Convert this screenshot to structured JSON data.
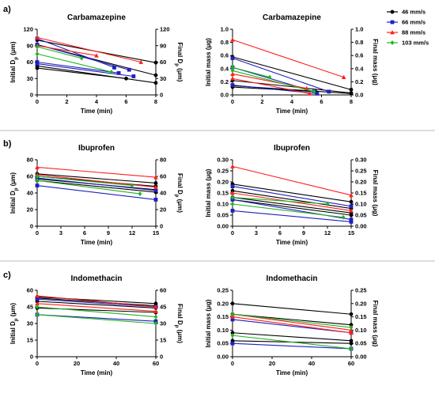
{
  "legend": {
    "items": [
      {
        "label": "46 mm/s",
        "color": "#000000",
        "marker": "circle"
      },
      {
        "label": "66 mm/s",
        "color": "#1f1fbf",
        "marker": "square"
      },
      {
        "label": "88 mm/s",
        "color": "#ff1f1f",
        "marker": "triangle"
      },
      {
        "label": "103 mm/s",
        "color": "#21b321",
        "marker": "diamond"
      }
    ]
  },
  "panel_labels": [
    "a)",
    "b)",
    "c)"
  ],
  "chart_data": [
    {
      "type": "line",
      "panel": "a",
      "title": "Carbamazepine",
      "xlabel": "Time (min)",
      "ylabel": "Initial D_p (μm)",
      "y2label": "Final D_p (μm)",
      "xlim": [
        0,
        8
      ],
      "ylim": [
        0,
        120
      ],
      "xticks": [
        0,
        2,
        4,
        6,
        8
      ],
      "yticks": [
        0,
        30,
        60,
        90,
        120
      ],
      "series": [
        {
          "color": "#000000",
          "points": [
            [
              0,
              100
            ],
            [
              8,
              59
            ]
          ]
        },
        {
          "color": "#000000",
          "points": [
            [
              0,
              92
            ],
            [
              8,
              36
            ]
          ]
        },
        {
          "color": "#000000",
          "points": [
            [
              0,
              53
            ],
            [
              8,
              22
            ]
          ]
        },
        {
          "color": "#000000",
          "points": [
            [
              0,
              49
            ],
            [
              6,
              30
            ]
          ]
        },
        {
          "color": "#1f1fbf",
          "points": [
            [
              0,
              103
            ],
            [
              5.2,
              50
            ]
          ]
        },
        {
          "color": "#1f1fbf",
          "points": [
            [
              0,
              92
            ],
            [
              6.2,
              46
            ]
          ]
        },
        {
          "color": "#1f1fbf",
          "points": [
            [
              0,
              60
            ],
            [
              5.5,
              40
            ]
          ]
        },
        {
          "color": "#1f1fbf",
          "points": [
            [
              0,
              57
            ],
            [
              6.5,
              34
            ]
          ]
        },
        {
          "color": "#ff1f1f",
          "points": [
            [
              0,
              105
            ],
            [
              7,
              60
            ]
          ]
        },
        {
          "color": "#ff1f1f",
          "points": [
            [
              0,
              90
            ],
            [
              4,
              72
            ]
          ]
        },
        {
          "color": "#21b321",
          "points": [
            [
              0,
              88
            ],
            [
              3,
              67
            ]
          ]
        },
        {
          "color": "#21b321",
          "points": [
            [
              0,
              75
            ],
            [
              5,
              42
            ]
          ]
        }
      ]
    },
    {
      "type": "line",
      "panel": "a",
      "title": "Carbamazepine",
      "xlabel": "Time (min)",
      "ylabel": "Initial mass (μg)",
      "y2label": "Final mass (μg)",
      "xlim": [
        0,
        8
      ],
      "ylim": [
        0,
        1.0
      ],
      "xticks": [
        0,
        2,
        4,
        6,
        8
      ],
      "yticks": [
        0.0,
        0.2,
        0.4,
        0.6,
        0.8,
        1.0
      ],
      "series": [
        {
          "color": "#000000",
          "points": [
            [
              0,
              0.58
            ],
            [
              8,
              0.08
            ]
          ]
        },
        {
          "color": "#000000",
          "points": [
            [
              0,
              0.22
            ],
            [
              8,
              0.03
            ]
          ]
        },
        {
          "color": "#000000",
          "points": [
            [
              0,
              0.14
            ],
            [
              8,
              0.02
            ]
          ]
        },
        {
          "color": "#000000",
          "points": [
            [
              0,
              0.12
            ],
            [
              5.6,
              0.05
            ]
          ]
        },
        {
          "color": "#1f1fbf",
          "points": [
            [
              0,
              0.56
            ],
            [
              6.5,
              0.05
            ]
          ]
        },
        {
          "color": "#1f1fbf",
          "points": [
            [
              0,
              0.42
            ],
            [
              5.5,
              0.05
            ]
          ]
        },
        {
          "color": "#1f1fbf",
          "points": [
            [
              0,
              0.15
            ],
            [
              5.7,
              0.02
            ]
          ]
        },
        {
          "color": "#ff1f1f",
          "points": [
            [
              0,
              0.84
            ],
            [
              7.5,
              0.27
            ]
          ]
        },
        {
          "color": "#ff1f1f",
          "points": [
            [
              0,
              0.32
            ],
            [
              5,
              0.1
            ]
          ]
        },
        {
          "color": "#ff1f1f",
          "points": [
            [
              0,
              0.25
            ],
            [
              5.2,
              0.02
            ]
          ]
        },
        {
          "color": "#21b321",
          "points": [
            [
              0,
              0.42
            ],
            [
              2.5,
              0.27
            ]
          ]
        },
        {
          "color": "#21b321",
          "points": [
            [
              0,
              0.37
            ],
            [
              5.5,
              0.05
            ]
          ]
        }
      ]
    },
    {
      "type": "line",
      "panel": "b",
      "title": "Ibuprofen",
      "xlabel": "Time (min)",
      "ylabel": "Initial D_p (μm)",
      "y2label": "Final D_p (μm)",
      "xlim": [
        0,
        15
      ],
      "ylim": [
        0,
        80
      ],
      "xticks": [
        0,
        3,
        6,
        9,
        12,
        15
      ],
      "yticks": [
        0,
        20,
        40,
        60,
        80
      ],
      "series": [
        {
          "color": "#000000",
          "points": [
            [
              0,
              63
            ],
            [
              15,
              52
            ]
          ]
        },
        {
          "color": "#000000",
          "points": [
            [
              0,
              60
            ],
            [
              15,
              48
            ]
          ]
        },
        {
          "color": "#000000",
          "points": [
            [
              0,
              57
            ],
            [
              15,
              44
            ]
          ]
        },
        {
          "color": "#000000",
          "points": [
            [
              0,
              55
            ],
            [
              15,
              41
            ]
          ]
        },
        {
          "color": "#1f1fbf",
          "points": [
            [
              0,
              49
            ],
            [
              15,
              32
            ]
          ]
        },
        {
          "color": "#1f1fbf",
          "points": [
            [
              0,
              58
            ],
            [
              15,
              43
            ]
          ]
        },
        {
          "color": "#ff1f1f",
          "points": [
            [
              0,
              71
            ],
            [
              15,
              59
            ]
          ]
        },
        {
          "color": "#ff1f1f",
          "points": [
            [
              0,
              62
            ],
            [
              15,
              47
            ]
          ]
        },
        {
          "color": "#21b321",
          "points": [
            [
              0,
              55
            ],
            [
              13,
              39
            ]
          ]
        },
        {
          "color": "#21b321",
          "points": [
            [
              0,
              60
            ],
            [
              12,
              49
            ]
          ]
        }
      ]
    },
    {
      "type": "line",
      "panel": "b",
      "title": "Ibuprofen",
      "xlabel": "Time (min)",
      "ylabel": "Initial mass (μg)",
      "y2label": "Final mass (μg)",
      "xlim": [
        0,
        15
      ],
      "ylim": [
        0,
        0.3
      ],
      "xticks": [
        0,
        3,
        6,
        9,
        12,
        15
      ],
      "yticks": [
        0.0,
        0.05,
        0.1,
        0.15,
        0.2,
        0.25,
        0.3
      ],
      "series": [
        {
          "color": "#000000",
          "points": [
            [
              0,
              0.19
            ],
            [
              15,
              0.11
            ]
          ]
        },
        {
          "color": "#000000",
          "points": [
            [
              0,
              0.16
            ],
            [
              15,
              0.08
            ]
          ]
        },
        {
          "color": "#000000",
          "points": [
            [
              0,
              0.13
            ],
            [
              15,
              0.06
            ]
          ]
        },
        {
          "color": "#000000",
          "points": [
            [
              0,
              0.12
            ],
            [
              15,
              0.05
            ]
          ]
        },
        {
          "color": "#1f1fbf",
          "points": [
            [
              0,
              0.18
            ],
            [
              15,
              0.09
            ]
          ]
        },
        {
          "color": "#1f1fbf",
          "points": [
            [
              0,
              0.07
            ],
            [
              15,
              0.02
            ]
          ]
        },
        {
          "color": "#1f1fbf",
          "points": [
            [
              0,
              0.12
            ],
            [
              15,
              0.03
            ]
          ]
        },
        {
          "color": "#ff1f1f",
          "points": [
            [
              0,
              0.27
            ],
            [
              15,
              0.14
            ]
          ]
        },
        {
          "color": "#ff1f1f",
          "points": [
            [
              0,
              0.15
            ],
            [
              15,
              0.07
            ]
          ]
        },
        {
          "color": "#21b321",
          "points": [
            [
              0,
              0.13
            ],
            [
              12,
              0.1
            ]
          ]
        },
        {
          "color": "#21b321",
          "points": [
            [
              0,
              0.1
            ],
            [
              14,
              0.04
            ]
          ]
        }
      ]
    },
    {
      "type": "line",
      "panel": "c",
      "title": "Indomethacin",
      "xlabel": "Time (min)",
      "ylabel": "Initial D_p (μm)",
      "y2label": "Final D_p (μm)",
      "xlim": [
        0,
        60
      ],
      "ylim": [
        0,
        60
      ],
      "xticks": [
        0,
        20,
        40,
        60
      ],
      "yticks": [
        0,
        15,
        30,
        45,
        60
      ],
      "series": [
        {
          "color": "#000000",
          "points": [
            [
              0,
              54
            ],
            [
              60,
              48
            ]
          ]
        },
        {
          "color": "#000000",
          "points": [
            [
              0,
              53
            ],
            [
              60,
              46
            ]
          ]
        },
        {
          "color": "#000000",
          "points": [
            [
              0,
              50
            ],
            [
              60,
              44
            ]
          ]
        },
        {
          "color": "#000000",
          "points": [
            [
              0,
              44
            ],
            [
              60,
              40
            ]
          ]
        },
        {
          "color": "#1f1fbf",
          "points": [
            [
              0,
              52
            ],
            [
              60,
              45
            ]
          ]
        },
        {
          "color": "#1f1fbf",
          "points": [
            [
              0,
              38
            ],
            [
              60,
              32
            ]
          ]
        },
        {
          "color": "#ff1f1f",
          "points": [
            [
              0,
              55
            ],
            [
              60,
              45
            ]
          ]
        },
        {
          "color": "#ff1f1f",
          "points": [
            [
              0,
              48
            ],
            [
              60,
              41
            ]
          ]
        },
        {
          "color": "#21b321",
          "points": [
            [
              0,
              45
            ],
            [
              60,
              36
            ]
          ]
        },
        {
          "color": "#21b321",
          "points": [
            [
              0,
              38
            ],
            [
              60,
              30
            ]
          ]
        }
      ]
    },
    {
      "type": "line",
      "panel": "c",
      "title": "Indomethacin",
      "xlabel": "Time (min)",
      "ylabel": "Initial mass (μg)",
      "y2label": "Final mass (μg)",
      "xlim": [
        0,
        60
      ],
      "ylim": [
        0,
        0.25
      ],
      "xticks": [
        0,
        20,
        40,
        60
      ],
      "yticks": [
        0.0,
        0.05,
        0.1,
        0.15,
        0.2,
        0.25
      ],
      "series": [
        {
          "color": "#000000",
          "points": [
            [
              0,
              0.2
            ],
            [
              60,
              0.16
            ]
          ]
        },
        {
          "color": "#000000",
          "points": [
            [
              0,
              0.16
            ],
            [
              60,
              0.12
            ]
          ]
        },
        {
          "color": "#000000",
          "points": [
            [
              0,
              0.09
            ],
            [
              60,
              0.06
            ]
          ]
        },
        {
          "color": "#000000",
          "points": [
            [
              0,
              0.06
            ],
            [
              60,
              0.05
            ]
          ]
        },
        {
          "color": "#1f1fbf",
          "points": [
            [
              0,
              0.14
            ],
            [
              60,
              0.09
            ]
          ]
        },
        {
          "color": "#1f1fbf",
          "points": [
            [
              0,
              0.05
            ],
            [
              60,
              0.03
            ]
          ]
        },
        {
          "color": "#ff1f1f",
          "points": [
            [
              0,
              0.16
            ],
            [
              60,
              0.1
            ]
          ]
        },
        {
          "color": "#ff1f1f",
          "points": [
            [
              0,
              0.15
            ],
            [
              60,
              0.09
            ]
          ]
        },
        {
          "color": "#21b321",
          "points": [
            [
              0,
              0.16
            ],
            [
              60,
              0.11
            ]
          ]
        },
        {
          "color": "#21b321",
          "points": [
            [
              0,
              0.08
            ],
            [
              60,
              0.03
            ]
          ]
        }
      ]
    }
  ]
}
